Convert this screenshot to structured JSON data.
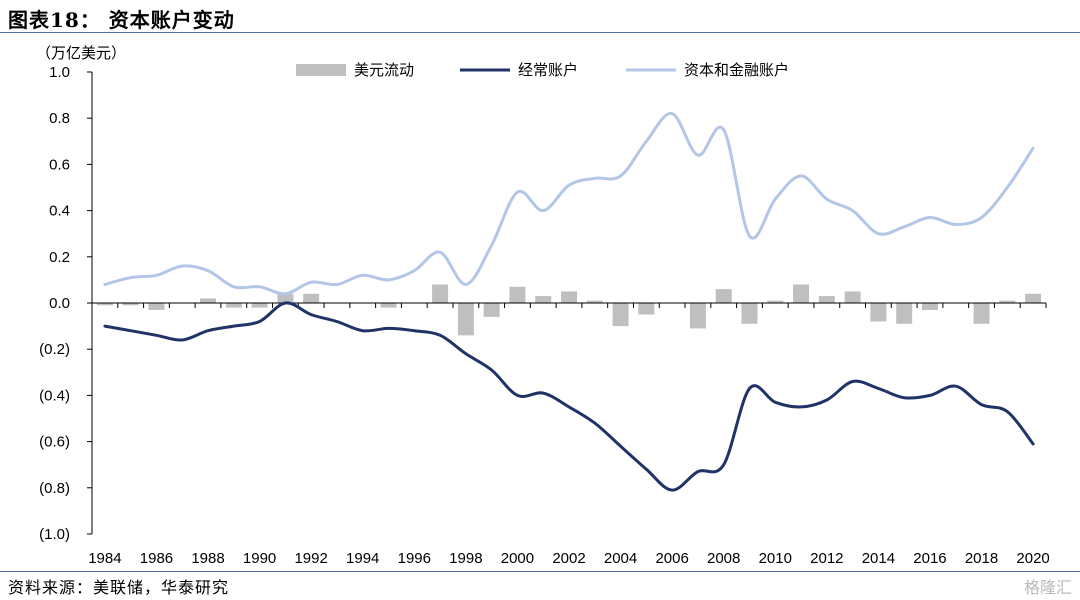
{
  "figure": {
    "title": "图表18： 资本账户变动",
    "unit": "（万亿美元）",
    "source": "资料来源：美联储，华泰研究",
    "watermark": "格隆汇"
  },
  "chart_data": {
    "type": "bar+line",
    "title": "资本账户变动",
    "ylabel": "（万亿美元）",
    "ylim": [
      -1.0,
      1.0
    ],
    "y_ticks": [
      1.0,
      0.8,
      0.6,
      0.4,
      0.2,
      0.0,
      -0.2,
      -0.4,
      -0.6,
      -0.8,
      -1.0
    ],
    "y_tick_labels": [
      "1.0",
      "0.8",
      "0.6",
      "0.4",
      "0.2",
      "0.0",
      "(0.2)",
      "(0.4)",
      "(0.6)",
      "(0.8)",
      "(1.0)"
    ],
    "x": [
      1984,
      1985,
      1986,
      1987,
      1988,
      1989,
      1990,
      1991,
      1992,
      1993,
      1994,
      1995,
      1996,
      1997,
      1998,
      1999,
      2000,
      2001,
      2002,
      2003,
      2004,
      2005,
      2006,
      2007,
      2008,
      2009,
      2010,
      2011,
      2012,
      2013,
      2014,
      2015,
      2016,
      2017,
      2018,
      2019,
      2020
    ],
    "x_tick_labels": [
      "1984",
      "1986",
      "1988",
      "1990",
      "1992",
      "1994",
      "1996",
      "1998",
      "2000",
      "2002",
      "2004",
      "2006",
      "2008",
      "2010",
      "2012",
      "2014",
      "2016",
      "2018",
      "2020"
    ],
    "legend_position": "top-center",
    "grid": false,
    "series": [
      {
        "name": "美元流动",
        "type": "bar",
        "color": "#bfbfbf",
        "values": [
          -0.01,
          -0.01,
          -0.03,
          0.0,
          0.02,
          -0.02,
          -0.02,
          0.04,
          0.04,
          0.0,
          0.0,
          -0.02,
          0.0,
          0.08,
          -0.14,
          -0.06,
          0.07,
          0.03,
          0.05,
          0.01,
          -0.1,
          -0.05,
          0.0,
          -0.11,
          0.06,
          -0.09,
          0.01,
          0.08,
          0.03,
          0.05,
          -0.08,
          -0.09,
          -0.03,
          0.0,
          -0.09,
          0.01,
          0.04
        ]
      },
      {
        "name": "经常账户",
        "type": "line",
        "color": "#1f3366",
        "values": [
          -0.1,
          -0.12,
          -0.14,
          -0.16,
          -0.12,
          -0.1,
          -0.08,
          0.0,
          -0.05,
          -0.08,
          -0.12,
          -0.11,
          -0.12,
          -0.14,
          -0.22,
          -0.29,
          -0.4,
          -0.39,
          -0.45,
          -0.52,
          -0.62,
          -0.72,
          -0.81,
          -0.73,
          -0.7,
          -0.37,
          -0.43,
          -0.45,
          -0.42,
          -0.34,
          -0.37,
          -0.41,
          -0.4,
          -0.36,
          -0.44,
          -0.47,
          -0.61
        ]
      },
      {
        "name": "资本和金融账户",
        "type": "line",
        "color": "#b3c6e7",
        "values": [
          0.08,
          0.11,
          0.12,
          0.16,
          0.14,
          0.07,
          0.07,
          0.04,
          0.09,
          0.08,
          0.12,
          0.1,
          0.14,
          0.22,
          0.08,
          0.25,
          0.48,
          0.4,
          0.51,
          0.54,
          0.55,
          0.7,
          0.82,
          0.64,
          0.75,
          0.29,
          0.45,
          0.55,
          0.45,
          0.4,
          0.3,
          0.33,
          0.37,
          0.34,
          0.37,
          0.5,
          0.67
        ]
      }
    ]
  }
}
